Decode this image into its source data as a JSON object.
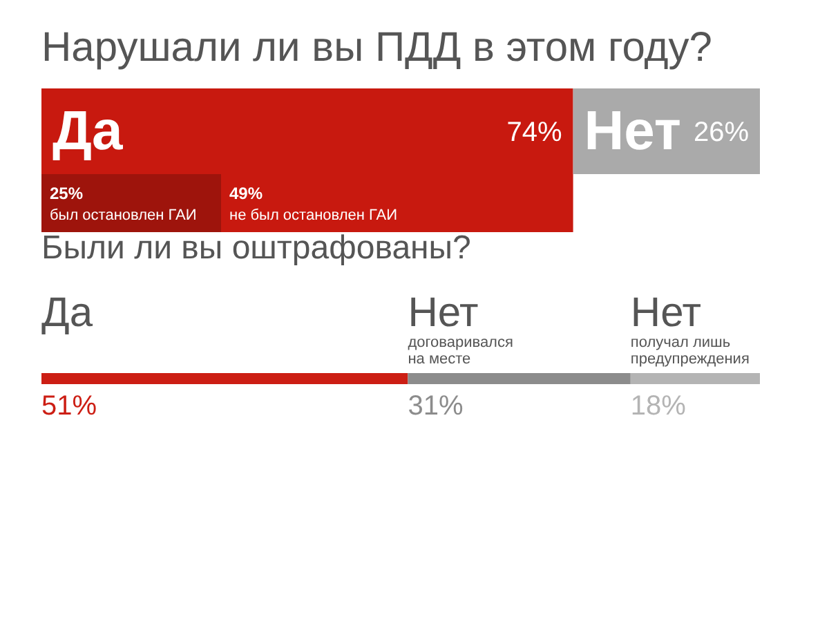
{
  "chart_data": [
    {
      "type": "bar",
      "orientation": "horizontal",
      "stacked": true,
      "title": "Нарушали ли вы ПДД в этом году?",
      "categories": [
        null
      ],
      "series": [
        {
          "name": "Да",
          "color": "#c8190f",
          "values": [
            74
          ],
          "value_labels": [
            "74%"
          ]
        },
        {
          "name": "Нет",
          "color": "#aaaaaa",
          "values": [
            26
          ],
          "value_labels": [
            "26%"
          ]
        }
      ]
    },
    {
      "type": "bar",
      "orientation": "horizontal",
      "stacked": true,
      "categories": [
        null
      ],
      "series": [
        {
          "name": "был остановлен ГАИ",
          "color": "#9e140c",
          "values": [
            25
          ],
          "value_labels": [
            "25%"
          ]
        },
        {
          "name": "не был остановлен ГАИ",
          "color": "#c8190f",
          "values": [
            49
          ],
          "value_labels": [
            "49%"
          ]
        }
      ]
    },
    {
      "type": "bar",
      "orientation": "horizontal",
      "stacked": true,
      "title": "Были ли вы оштрафованы?",
      "categories": [
        null
      ],
      "series": [
        {
          "name": "Да",
          "color": "#cc1e14",
          "values": [
            51
          ],
          "value_labels": [
            "51%"
          ]
        },
        {
          "name": "Нет\nдоговаривался\nна месте",
          "color": "#8c8c8c",
          "values": [
            31
          ],
          "value_labels": [
            "31%"
          ]
        },
        {
          "name": "Нет\nполучал лишь\nпредупреждения",
          "color": "#b4b4b4",
          "values": [
            18
          ],
          "value_labels": [
            "18%"
          ]
        }
      ]
    }
  ]
}
